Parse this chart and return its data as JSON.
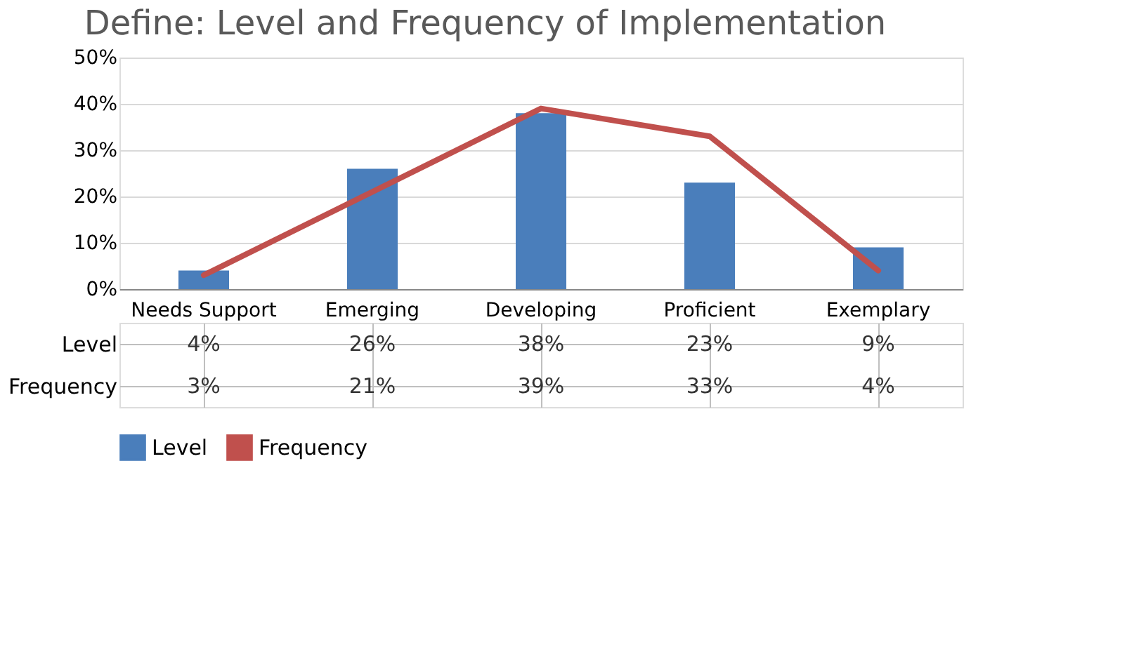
{
  "chart_data": {
    "type": "bar",
    "title": "Define: Level and Frequency of Implementation",
    "categories": [
      "Needs Support",
      "Emerging",
      "Developing",
      "Proficient",
      "Exemplary"
    ],
    "series": [
      {
        "name": "Level",
        "color": "#4a7ebb",
        "values": [
          4,
          26,
          38,
          23,
          9
        ],
        "value_labels": [
          "4%",
          "26%",
          "38%",
          "23%",
          "9%"
        ]
      },
      {
        "name": "Frequency",
        "type": "line",
        "color": "#c0504d",
        "values": [
          3,
          21,
          39,
          33,
          4
        ],
        "value_labels": [
          "3%",
          "21%",
          "39%",
          "33%",
          "4%"
        ]
      }
    ],
    "ylim": [
      0,
      50
    ],
    "yticks": [
      {
        "value": 0,
        "label": "0%"
      },
      {
        "value": 10,
        "label": "10%"
      },
      {
        "value": 20,
        "label": "20%"
      },
      {
        "value": 30,
        "label": "30%"
      },
      {
        "value": 40,
        "label": "40%"
      },
      {
        "value": 50,
        "label": "50%"
      }
    ],
    "grid": "y",
    "legend": "bottom"
  }
}
